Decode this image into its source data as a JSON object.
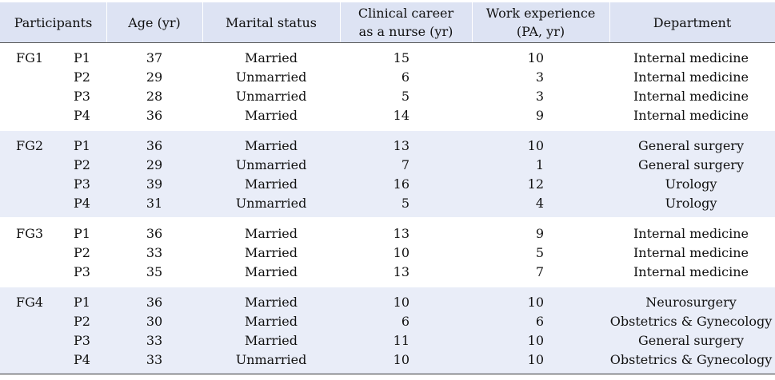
{
  "headers": {
    "participants": "Participants",
    "age": "Age (yr)",
    "marital": "Marital status",
    "clinical_line1": "Clinical career",
    "clinical_line2": "as a nurse (yr)",
    "work_line1": "Work experience",
    "work_line2": "(PA, yr)",
    "department": "Department"
  },
  "groups": [
    {
      "label": "FG1",
      "rows": [
        {
          "p": "P1",
          "age": "37",
          "marital": "Married",
          "clinical": "15",
          "work": "10",
          "dept": "Internal medicine"
        },
        {
          "p": "P2",
          "age": "29",
          "marital": "Unmarried",
          "clinical": "6",
          "work": "3",
          "dept": "Internal medicine"
        },
        {
          "p": "P3",
          "age": "28",
          "marital": "Unmarried",
          "clinical": "5",
          "work": "3",
          "dept": "Internal medicine"
        },
        {
          "p": "P4",
          "age": "36",
          "marital": "Married",
          "clinical": "14",
          "work": "9",
          "dept": "Internal medicine"
        }
      ]
    },
    {
      "label": "FG2",
      "rows": [
        {
          "p": "P1",
          "age": "36",
          "marital": "Married",
          "clinical": "13",
          "work": "10",
          "dept": "General surgery"
        },
        {
          "p": "P2",
          "age": "29",
          "marital": "Unmarried",
          "clinical": "7",
          "work": "1",
          "dept": "General surgery"
        },
        {
          "p": "P3",
          "age": "39",
          "marital": "Married",
          "clinical": "16",
          "work": "12",
          "dept": "Urology"
        },
        {
          "p": "P4",
          "age": "31",
          "marital": "Unmarried",
          "clinical": "5",
          "work": "4",
          "dept": "Urology"
        }
      ]
    },
    {
      "label": "FG3",
      "rows": [
        {
          "p": "P1",
          "age": "36",
          "marital": "Married",
          "clinical": "13",
          "work": "9",
          "dept": "Internal medicine"
        },
        {
          "p": "P2",
          "age": "33",
          "marital": "Married",
          "clinical": "10",
          "work": "5",
          "dept": "Internal medicine"
        },
        {
          "p": "P3",
          "age": "35",
          "marital": "Married",
          "clinical": "13",
          "work": "7",
          "dept": "Internal medicine"
        }
      ]
    },
    {
      "label": "FG4",
      "rows": [
        {
          "p": "P1",
          "age": "36",
          "marital": "Married",
          "clinical": "10",
          "work": "10",
          "dept": "Neurosurgery"
        },
        {
          "p": "P2",
          "age": "30",
          "marital": "Married",
          "clinical": "6",
          "work": "6",
          "dept": "Obstetrics & Gynecology"
        },
        {
          "p": "P3",
          "age": "33",
          "marital": "Married",
          "clinical": "11",
          "work": "10",
          "dept": "General surgery"
        },
        {
          "p": "P4",
          "age": "33",
          "marital": "Unmarried",
          "clinical": "10",
          "work": "10",
          "dept": "Obstetrics & Gynecology"
        }
      ]
    }
  ]
}
